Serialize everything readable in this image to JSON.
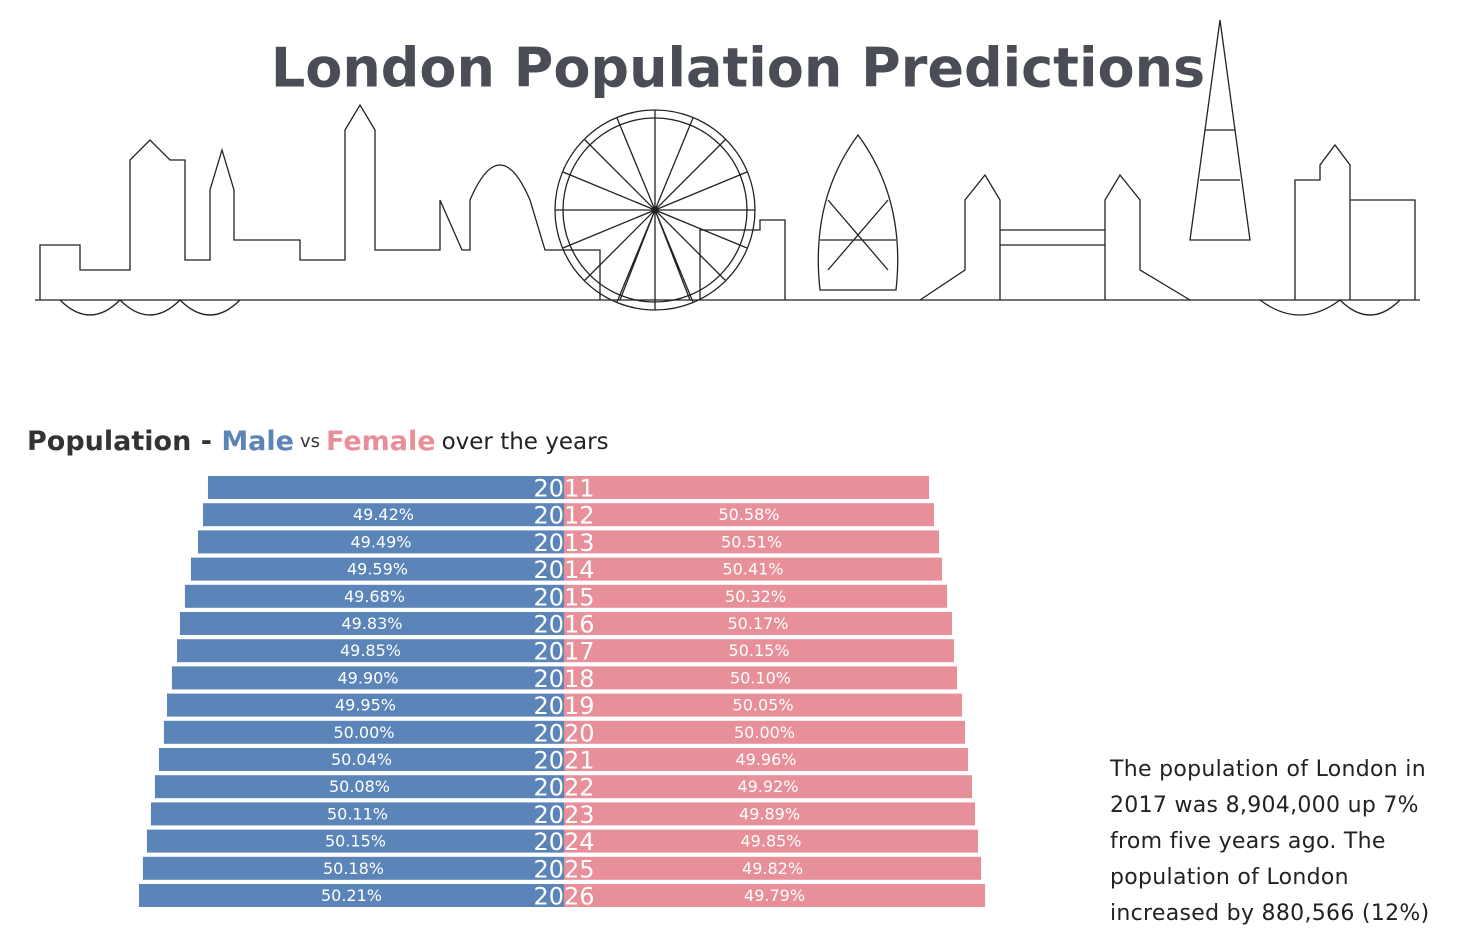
{
  "chart_data": {
    "type": "bar",
    "title": "London Population Predictions",
    "subtitle": {
      "lead": "Population - ",
      "male": "Male",
      "vs": "vs",
      "female": "Female",
      "tail": "over the years"
    },
    "categories": [
      "2011",
      "2012",
      "2013",
      "2014",
      "2015",
      "2016",
      "2017",
      "2018",
      "2019",
      "2020",
      "2021",
      "2022",
      "2023",
      "2024",
      "2025",
      "2026"
    ],
    "series": [
      {
        "name": "Male",
        "color": "#5b84b8",
        "side": "left",
        "values": [
          4085000,
          4142000,
          4199000,
          4280000,
          4349000,
          4406000,
          4440000,
          4498000,
          4555000,
          4590000,
          4647000,
          4693000,
          4739000,
          4785000,
          4831000,
          4876000
        ],
        "share": [
          null,
          49.42,
          49.49,
          49.59,
          49.68,
          49.83,
          49.85,
          49.9,
          49.95,
          50.0,
          50.04,
          50.08,
          50.11,
          50.15,
          50.18,
          50.21
        ],
        "share_labels": [
          null,
          "49.42%",
          "49.49%",
          "49.59%",
          "49.68%",
          "49.83%",
          "49.85%",
          "49.90%",
          "49.95%",
          "50.00%",
          "50.04%",
          "50.08%",
          "50.11%",
          "50.15%",
          "50.18%",
          "50.21%"
        ]
      },
      {
        "name": "Female",
        "color": "#e8909a",
        "side": "right",
        "values": [
          4188000,
          4245000,
          4303000,
          4337000,
          4395000,
          4452000,
          4475000,
          4509000,
          4567000,
          4601000,
          4635000,
          4681000,
          4716000,
          4750000,
          4785000,
          4831000
        ],
        "share": [
          null,
          50.58,
          50.51,
          50.41,
          50.32,
          50.17,
          50.15,
          50.1,
          50.05,
          50.0,
          49.96,
          49.92,
          49.89,
          49.85,
          49.82,
          49.79
        ],
        "share_labels": [
          null,
          "50.58%",
          "50.51%",
          "50.41%",
          "50.32%",
          "50.17%",
          "50.15%",
          "50.10%",
          "50.05%",
          "50.00%",
          "49.96%",
          "49.92%",
          "49.89%",
          "49.85%",
          "49.82%",
          "49.79%"
        ]
      }
    ]
  },
  "note": "The population of London in 2017 was 8,904,000 up 7% from five years ago. The population of London increased by 880,566 (12%)"
}
